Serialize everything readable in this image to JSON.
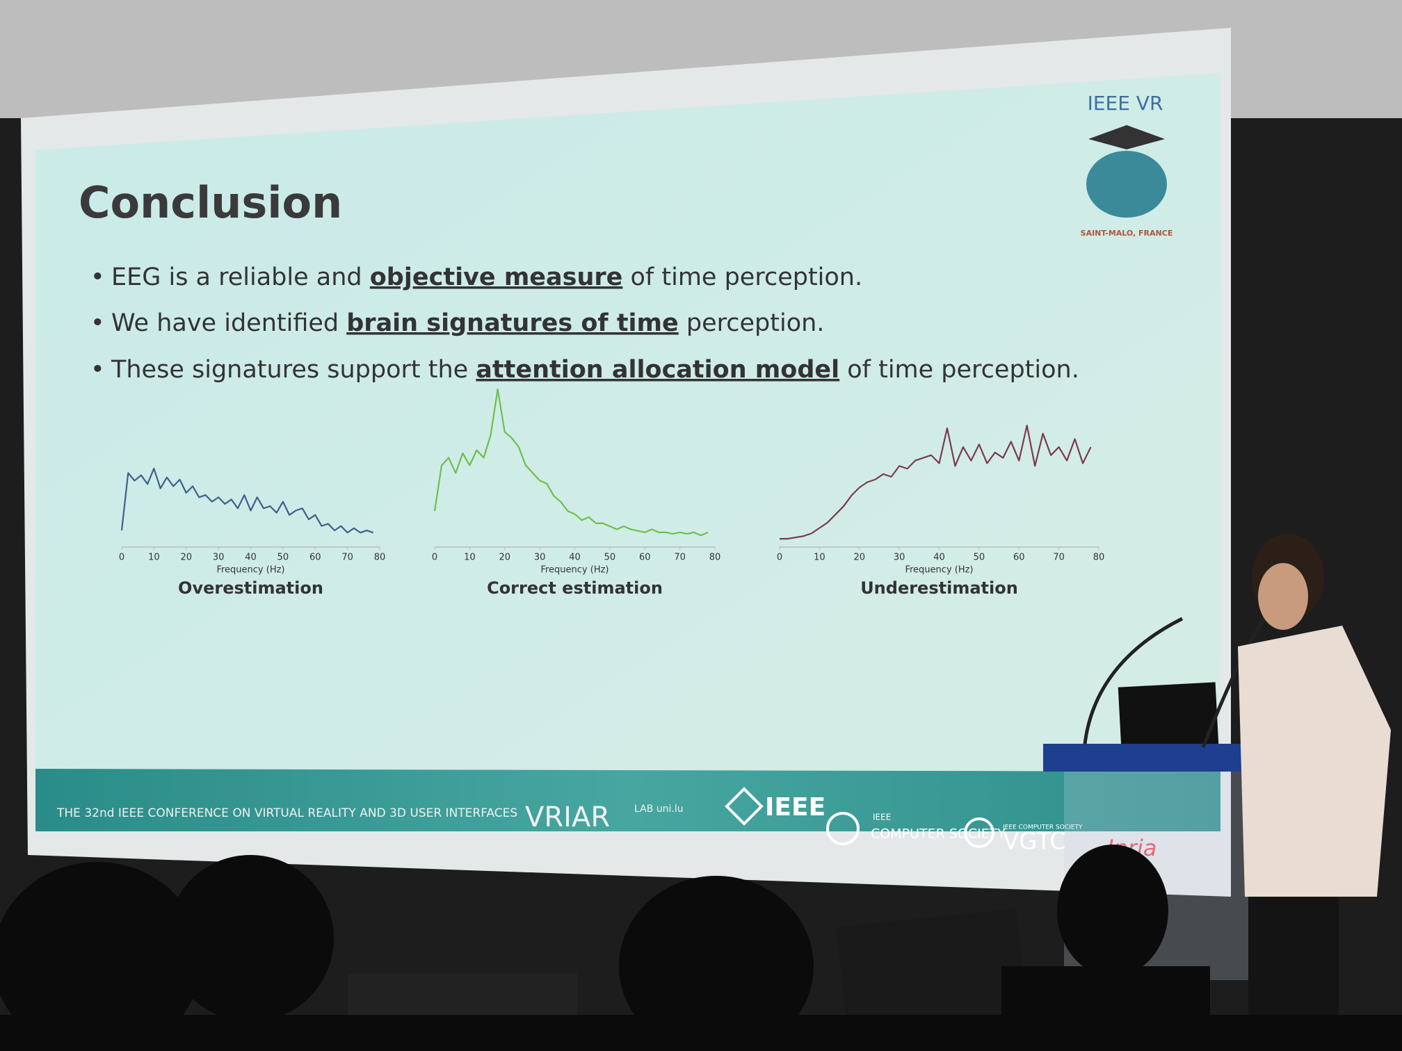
{
  "slide": {
    "title": "Conclusion",
    "bullets": [
      {
        "before": "EEG is a reliable and ",
        "emphasis": "objective measure",
        "after": " of time perception."
      },
      {
        "before": "We have identified ",
        "emphasis": "brain signatures of time",
        "after": " perception."
      },
      {
        "before": "These signatures support the ",
        "emphasis": "attention allocation model",
        "after": " of time perception."
      }
    ],
    "logo": {
      "title": "IEEE VR",
      "place": "SAINT-MALO, FRANCE"
    },
    "footer": {
      "conference": "THE 32nd IEEE CONFERENCE ON VIRTUAL REALITY AND 3D USER INTERFACES",
      "lab": "VRIAR",
      "lab_sub": "LAB uni.lu",
      "ieee": "IEEE",
      "cs_top": "IEEE",
      "cs": "COMPUTER SOCIETY",
      "vgtc_top": "IEEE COMPUTER SOCIETY",
      "vgtc": "VGTC",
      "inria": "Inria"
    }
  },
  "chart_data": [
    {
      "type": "line",
      "title": "Overestimation",
      "x_label": "Frequency (Hz)",
      "color": "#3e5f8a",
      "x": [
        0,
        2,
        4,
        6,
        8,
        10,
        12,
        14,
        16,
        18,
        20,
        22,
        24,
        26,
        28,
        30,
        32,
        34,
        36,
        38,
        40,
        42,
        44,
        46,
        48,
        50,
        52,
        54,
        56,
        58,
        60,
        62,
        64,
        66,
        68,
        70,
        72,
        74,
        76,
        78
      ],
      "values": [
        10,
        62,
        55,
        60,
        52,
        66,
        48,
        58,
        50,
        56,
        44,
        50,
        40,
        42,
        36,
        40,
        34,
        38,
        30,
        42,
        28,
        40,
        30,
        32,
        26,
        36,
        24,
        28,
        30,
        20,
        24,
        14,
        16,
        10,
        14,
        8,
        12,
        8,
        10,
        8
      ],
      "xlim": [
        0,
        80
      ],
      "xticks": [
        0,
        10,
        20,
        30,
        40,
        50,
        60,
        70,
        80
      ],
      "ylim": [
        0,
        100
      ]
    },
    {
      "type": "line",
      "title": "Correct estimation",
      "x_label": "Frequency (Hz)",
      "color": "#6cbf4a",
      "x": [
        0,
        2,
        4,
        6,
        8,
        10,
        12,
        14,
        16,
        18,
        20,
        22,
        24,
        26,
        28,
        30,
        32,
        34,
        36,
        38,
        40,
        42,
        44,
        46,
        48,
        50,
        52,
        54,
        56,
        58,
        60,
        62,
        64,
        66,
        68,
        70,
        72,
        74,
        76,
        78
      ],
      "values": [
        20,
        50,
        55,
        45,
        58,
        50,
        60,
        55,
        70,
        100,
        72,
        68,
        62,
        50,
        45,
        40,
        38,
        30,
        26,
        20,
        18,
        14,
        16,
        12,
        12,
        10,
        8,
        10,
        8,
        7,
        6,
        8,
        6,
        6,
        5,
        6,
        5,
        6,
        4,
        6
      ],
      "xlim": [
        0,
        80
      ],
      "xticks": [
        0,
        10,
        20,
        30,
        40,
        50,
        60,
        70,
        80
      ],
      "ylim": [
        0,
        100
      ]
    },
    {
      "type": "line",
      "title": "Underestimation",
      "x_label": "Frequency (Hz)",
      "color": "#7a3a4a",
      "x": [
        0,
        2,
        4,
        6,
        8,
        10,
        12,
        14,
        16,
        18,
        20,
        22,
        24,
        26,
        28,
        30,
        32,
        34,
        36,
        38,
        40,
        42,
        44,
        46,
        48,
        50,
        52,
        54,
        56,
        58,
        60,
        62,
        64,
        66,
        68,
        70,
        72,
        74,
        76,
        78
      ],
      "values": [
        2,
        2,
        3,
        4,
        6,
        10,
        14,
        20,
        26,
        34,
        40,
        44,
        46,
        50,
        48,
        56,
        54,
        60,
        62,
        64,
        58,
        84,
        56,
        70,
        60,
        72,
        58,
        66,
        62,
        74,
        60,
        86,
        56,
        80,
        64,
        70,
        60,
        76,
        58,
        70
      ],
      "xlim": [
        0,
        80
      ],
      "xticks": [
        0,
        10,
        20,
        30,
        40,
        50,
        60,
        70,
        80
      ],
      "ylim": [
        0,
        100
      ]
    }
  ]
}
